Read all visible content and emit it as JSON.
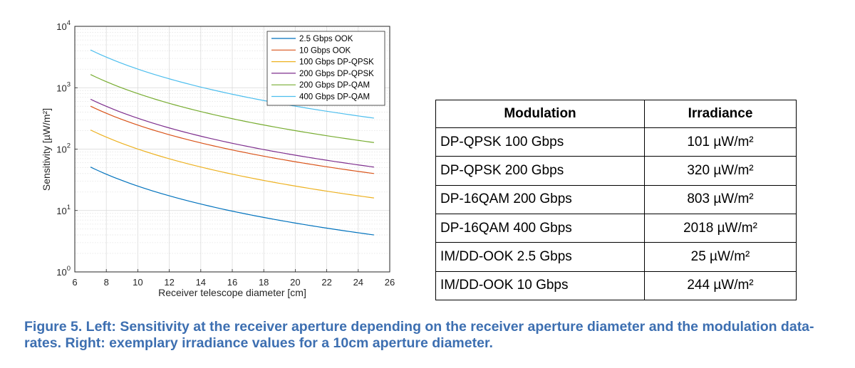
{
  "chart_data": {
    "type": "line",
    "title": "",
    "xlabel": "Receiver telescope diameter [cm]",
    "ylabel": "Sensitivity [µW/m²]",
    "xlim": [
      6,
      26
    ],
    "ylim": [
      1,
      10000
    ],
    "yscale": "log",
    "grid": true,
    "legend_position": "top-right",
    "x_ticks": [
      "6",
      "8",
      "10",
      "12",
      "14",
      "16",
      "18",
      "20",
      "22",
      "24",
      "26"
    ],
    "y_ticks": [
      {
        "value": 1,
        "base": "10",
        "exp": "0"
      },
      {
        "value": 10,
        "base": "10",
        "exp": "1"
      },
      {
        "value": 100,
        "base": "10",
        "exp": "2"
      },
      {
        "value": 1000,
        "base": "10",
        "exp": "3"
      },
      {
        "value": 10000,
        "base": "10",
        "exp": "4"
      }
    ],
    "x": [
      7,
      25
    ],
    "series": [
      {
        "name": "2.5 Gbps OOK",
        "color": "#0072bd",
        "values": [
          51,
          4
        ]
      },
      {
        "name": "10 Gbps OOK",
        "color": "#d95319",
        "values": [
          500,
          40
        ]
      },
      {
        "name": "100 Gbps DP-QPSK",
        "color": "#edb120",
        "values": [
          205,
          16
        ]
      },
      {
        "name": "200 Gbps DP-QPSK",
        "color": "#7e2f8e",
        "values": [
          650,
          51
        ]
      },
      {
        "name": "200 Gbps DP-QAM",
        "color": "#77ac30",
        "values": [
          1640,
          128
        ]
      },
      {
        "name": "400 Gbps DP-QAM",
        "color": "#4dbeee",
        "values": [
          4120,
          320
        ]
      }
    ]
  },
  "table": {
    "headers": [
      "Modulation",
      "Irradiance"
    ],
    "rows": [
      [
        "DP-QPSK 100 Gbps",
        "101 µW/m²"
      ],
      [
        "DP-QPSK 200 Gbps",
        "320 µW/m²"
      ],
      [
        "DP-16QAM 200 Gbps",
        "803 µW/m²"
      ],
      [
        "DP-16QAM 400 Gbps",
        "2018 µW/m²"
      ],
      [
        "IM/DD-OOK 2.5 Gbps",
        "25 µW/m²"
      ],
      [
        "IM/DD-OOK 10 Gbps",
        "244 µW/m²"
      ]
    ]
  },
  "caption": "Figure 5. Left: Sensitivity at the receiver aperture depending on the receiver aperture diameter and the modulation data-rates. Right: exemplary irradiance values for a 10cm aperture diameter."
}
